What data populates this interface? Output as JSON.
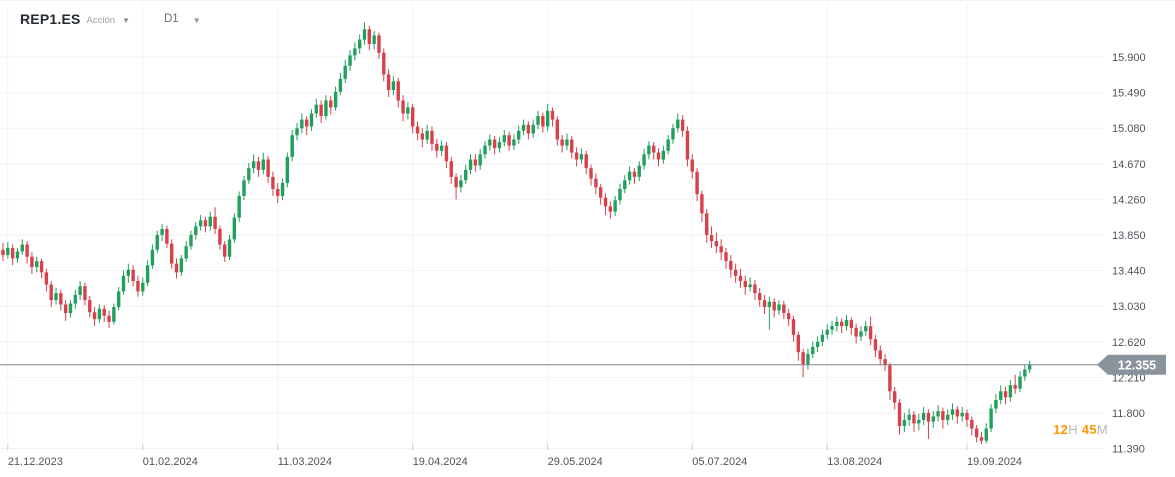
{
  "header": {
    "symbol": "REP1.ES",
    "instrument_type": "Acción",
    "timeframe": "D1"
  },
  "price_scale": {
    "current_price": "12.355",
    "countdown": {
      "hours": "12",
      "hours_unit": "H",
      "minutes": "45",
      "minutes_unit": "M"
    }
  },
  "chart_data": {
    "type": "candlestick",
    "title": "REP1.ES Acción D1",
    "symbol": "REP1.ES",
    "timeframe": "D1",
    "ylim": [
      11.39,
      15.9
    ],
    "grid": true,
    "y_ticks": [
      "15.900",
      "15.490",
      "15.080",
      "14.670",
      "14.260",
      "13.850",
      "13.440",
      "13.030",
      "12.620",
      "12.210",
      "11.800",
      "11.390"
    ],
    "x_ticks": [
      {
        "label": "21.12.2023",
        "index": 1
      },
      {
        "label": "01.02.2024",
        "index": 29
      },
      {
        "label": "11.03.2024",
        "index": 57
      },
      {
        "label": "19.04.2024",
        "index": 85
      },
      {
        "label": "29.05.2024",
        "index": 113
      },
      {
        "label": "05.07.2024",
        "index": 143
      },
      {
        "label": "13.08.2024",
        "index": 171
      },
      {
        "label": "19.09.2024",
        "index": 200
      }
    ],
    "current_price": 12.355,
    "colors": {
      "up": "#21a05d",
      "down": "#d7414b",
      "grid": "#f1f2f4",
      "price_line": "#7d858d",
      "badge": "#8a939b",
      "axis_text": "#4d545b"
    },
    "candles": [
      [
        13.68,
        13.76,
        13.55,
        13.62
      ],
      [
        13.62,
        13.77,
        13.58,
        13.7
      ],
      [
        13.7,
        13.74,
        13.5,
        13.58
      ],
      [
        13.58,
        13.7,
        13.53,
        13.66
      ],
      [
        13.66,
        13.8,
        13.62,
        13.74
      ],
      [
        13.74,
        13.78,
        13.52,
        13.6
      ],
      [
        13.6,
        13.65,
        13.4,
        13.48
      ],
      [
        13.48,
        13.6,
        13.42,
        13.55
      ],
      [
        13.55,
        13.58,
        13.35,
        13.42
      ],
      [
        13.42,
        13.46,
        13.2,
        13.28
      ],
      [
        13.28,
        13.32,
        13.02,
        13.1
      ],
      [
        13.1,
        13.24,
        13.05,
        13.18
      ],
      [
        13.18,
        13.22,
        12.98,
        13.05
      ],
      [
        13.05,
        13.1,
        12.86,
        12.95
      ],
      [
        12.95,
        13.1,
        12.9,
        13.06
      ],
      [
        13.06,
        13.22,
        13.0,
        13.16
      ],
      [
        13.16,
        13.32,
        13.1,
        13.26
      ],
      [
        13.26,
        13.3,
        13.04,
        13.1
      ],
      [
        13.1,
        13.15,
        12.9,
        12.96
      ],
      [
        12.96,
        13.02,
        12.8,
        12.88
      ],
      [
        12.88,
        13.05,
        12.84,
        13.0
      ],
      [
        13.0,
        13.04,
        12.85,
        12.92
      ],
      [
        12.92,
        12.98,
        12.78,
        12.85
      ],
      [
        12.85,
        13.06,
        12.82,
        13.02
      ],
      [
        13.02,
        13.25,
        12.98,
        13.2
      ],
      [
        13.2,
        13.44,
        13.16,
        13.38
      ],
      [
        13.38,
        13.52,
        13.3,
        13.45
      ],
      [
        13.45,
        13.5,
        13.26,
        13.32
      ],
      [
        13.32,
        13.38,
        13.14,
        13.2
      ],
      [
        13.2,
        13.36,
        13.15,
        13.3
      ],
      [
        13.3,
        13.56,
        13.26,
        13.5
      ],
      [
        13.5,
        13.74,
        13.46,
        13.68
      ],
      [
        13.68,
        13.9,
        13.64,
        13.85
      ],
      [
        13.85,
        13.98,
        13.78,
        13.92
      ],
      [
        13.92,
        13.96,
        13.7,
        13.75
      ],
      [
        13.75,
        13.8,
        13.46,
        13.52
      ],
      [
        13.52,
        13.58,
        13.35,
        13.42
      ],
      [
        13.42,
        13.62,
        13.38,
        13.58
      ],
      [
        13.58,
        13.78,
        13.54,
        13.72
      ],
      [
        13.72,
        13.9,
        13.68,
        13.85
      ],
      [
        13.85,
        14.0,
        13.8,
        13.95
      ],
      [
        13.95,
        14.08,
        13.9,
        14.02
      ],
      [
        14.02,
        14.06,
        13.88,
        13.95
      ],
      [
        13.95,
        14.12,
        13.9,
        14.06
      ],
      [
        14.06,
        14.17,
        13.86,
        13.92
      ],
      [
        13.92,
        13.96,
        13.68,
        13.74
      ],
      [
        13.74,
        13.78,
        13.54,
        13.6
      ],
      [
        13.6,
        13.85,
        13.56,
        13.8
      ],
      [
        13.8,
        14.1,
        13.76,
        14.05
      ],
      [
        14.05,
        14.35,
        14.0,
        14.3
      ],
      [
        14.3,
        14.53,
        14.25,
        14.48
      ],
      [
        14.48,
        14.68,
        14.44,
        14.62
      ],
      [
        14.62,
        14.78,
        14.56,
        14.7
      ],
      [
        14.7,
        14.75,
        14.52,
        14.6
      ],
      [
        14.6,
        14.8,
        14.55,
        14.72
      ],
      [
        14.72,
        14.76,
        14.45,
        14.52
      ],
      [
        14.52,
        14.58,
        14.3,
        14.38
      ],
      [
        14.38,
        14.45,
        14.22,
        14.3
      ],
      [
        14.3,
        14.5,
        14.25,
        14.45
      ],
      [
        14.45,
        14.8,
        14.4,
        14.75
      ],
      [
        14.75,
        15.06,
        14.7,
        15.0
      ],
      [
        15.0,
        15.14,
        14.94,
        15.08
      ],
      [
        15.08,
        15.25,
        15.02,
        15.18
      ],
      [
        15.18,
        15.22,
        15.0,
        15.1
      ],
      [
        15.1,
        15.3,
        15.05,
        15.25
      ],
      [
        15.25,
        15.42,
        15.2,
        15.35
      ],
      [
        15.35,
        15.4,
        15.14,
        15.22
      ],
      [
        15.22,
        15.46,
        15.18,
        15.4
      ],
      [
        15.4,
        15.45,
        15.24,
        15.32
      ],
      [
        15.32,
        15.56,
        15.28,
        15.5
      ],
      [
        15.5,
        15.72,
        15.46,
        15.65
      ],
      [
        15.65,
        15.87,
        15.6,
        15.8
      ],
      [
        15.8,
        15.98,
        15.74,
        15.92
      ],
      [
        15.92,
        16.07,
        15.86,
        16.0
      ],
      [
        16.0,
        16.16,
        15.94,
        16.1
      ],
      [
        16.1,
        16.3,
        16.04,
        16.22
      ],
      [
        16.22,
        16.26,
        15.98,
        16.05
      ],
      [
        16.05,
        16.2,
        15.99,
        16.15
      ],
      [
        16.15,
        16.18,
        15.88,
        15.95
      ],
      [
        15.95,
        16.0,
        15.62,
        15.7
      ],
      [
        15.7,
        15.76,
        15.44,
        15.52
      ],
      [
        15.52,
        15.68,
        15.46,
        15.62
      ],
      [
        15.62,
        15.66,
        15.32,
        15.4
      ],
      [
        15.4,
        15.46,
        15.16,
        15.25
      ],
      [
        15.25,
        15.38,
        15.18,
        15.32
      ],
      [
        15.32,
        15.36,
        15.02,
        15.1
      ],
      [
        15.1,
        15.16,
        14.94,
        15.02
      ],
      [
        15.02,
        15.08,
        14.86,
        14.95
      ],
      [
        14.95,
        15.12,
        14.9,
        15.05
      ],
      [
        15.05,
        15.1,
        14.82,
        14.9
      ],
      [
        14.9,
        14.96,
        14.74,
        14.82
      ],
      [
        14.82,
        14.94,
        14.76,
        14.88
      ],
      [
        14.88,
        14.92,
        14.62,
        14.7
      ],
      [
        14.7,
        14.75,
        14.44,
        14.52
      ],
      [
        14.52,
        14.56,
        14.26,
        14.4
      ],
      [
        14.4,
        14.54,
        14.34,
        14.48
      ],
      [
        14.48,
        14.66,
        14.44,
        14.6
      ],
      [
        14.6,
        14.78,
        14.55,
        14.72
      ],
      [
        14.72,
        14.78,
        14.58,
        14.65
      ],
      [
        14.65,
        14.84,
        14.6,
        14.78
      ],
      [
        14.78,
        14.93,
        14.73,
        14.88
      ],
      [
        14.88,
        15.01,
        14.82,
        14.95
      ],
      [
        14.95,
        14.99,
        14.78,
        14.85
      ],
      [
        14.85,
        14.98,
        14.8,
        14.92
      ],
      [
        14.92,
        15.06,
        14.87,
        15.0
      ],
      [
        15.0,
        15.04,
        14.82,
        14.88
      ],
      [
        14.88,
        15.01,
        14.83,
        14.95
      ],
      [
        14.95,
        15.11,
        14.9,
        15.05
      ],
      [
        15.05,
        15.18,
        15.0,
        15.12
      ],
      [
        15.12,
        15.16,
        14.95,
        15.02
      ],
      [
        15.02,
        15.18,
        14.97,
        15.12
      ],
      [
        15.12,
        15.28,
        15.07,
        15.22
      ],
      [
        15.22,
        15.26,
        15.03,
        15.1
      ],
      [
        15.1,
        15.36,
        15.05,
        15.28
      ],
      [
        15.28,
        15.32,
        15.1,
        15.18
      ],
      [
        15.18,
        15.22,
        14.88,
        14.95
      ],
      [
        14.95,
        15.0,
        14.8,
        14.88
      ],
      [
        14.88,
        15.02,
        14.83,
        14.95
      ],
      [
        14.95,
        14.99,
        14.73,
        14.8
      ],
      [
        14.8,
        14.86,
        14.64,
        14.72
      ],
      [
        14.72,
        14.85,
        14.67,
        14.78
      ],
      [
        14.78,
        14.82,
        14.55,
        14.62
      ],
      [
        14.62,
        14.66,
        14.42,
        14.5
      ],
      [
        14.5,
        14.56,
        14.32,
        14.4
      ],
      [
        14.4,
        14.44,
        14.2,
        14.28
      ],
      [
        14.28,
        14.33,
        14.08,
        14.18
      ],
      [
        14.18,
        14.24,
        14.04,
        14.12
      ],
      [
        14.12,
        14.3,
        14.07,
        14.25
      ],
      [
        14.25,
        14.44,
        14.2,
        14.38
      ],
      [
        14.38,
        14.54,
        14.33,
        14.48
      ],
      [
        14.48,
        14.64,
        14.43,
        14.58
      ],
      [
        14.58,
        14.62,
        14.44,
        14.52
      ],
      [
        14.52,
        14.7,
        14.47,
        14.65
      ],
      [
        14.65,
        14.84,
        14.6,
        14.78
      ],
      [
        14.78,
        14.93,
        14.72,
        14.88
      ],
      [
        14.88,
        14.92,
        14.72,
        14.8
      ],
      [
        14.8,
        14.85,
        14.64,
        14.72
      ],
      [
        14.72,
        14.88,
        14.67,
        14.82
      ],
      [
        14.82,
        15.0,
        14.78,
        14.95
      ],
      [
        14.95,
        15.13,
        14.9,
        15.08
      ],
      [
        15.08,
        15.25,
        15.03,
        15.18
      ],
      [
        15.18,
        15.23,
        14.98,
        15.05
      ],
      [
        15.05,
        15.1,
        14.64,
        14.72
      ],
      [
        14.72,
        14.78,
        14.5,
        14.58
      ],
      [
        14.58,
        14.62,
        14.24,
        14.32
      ],
      [
        14.32,
        14.36,
        14.0,
        14.1
      ],
      [
        14.1,
        14.15,
        13.76,
        13.85
      ],
      [
        13.85,
        13.95,
        13.7,
        13.78
      ],
      [
        13.78,
        13.88,
        13.64,
        13.72
      ],
      [
        13.72,
        13.8,
        13.56,
        13.65
      ],
      [
        13.65,
        13.7,
        13.46,
        13.55
      ],
      [
        13.55,
        13.62,
        13.36,
        13.45
      ],
      [
        13.45,
        13.52,
        13.3,
        13.38
      ],
      [
        13.38,
        13.46,
        13.24,
        13.32
      ],
      [
        13.32,
        13.38,
        13.16,
        13.25
      ],
      [
        13.25,
        13.36,
        13.2,
        13.28
      ],
      [
        13.28,
        13.33,
        13.1,
        13.18
      ],
      [
        13.18,
        13.24,
        13.02,
        13.1
      ],
      [
        13.1,
        13.16,
        12.94,
        13.02
      ],
      [
        13.02,
        13.14,
        12.76,
        13.08
      ],
      [
        13.08,
        13.12,
        12.9,
        12.98
      ],
      [
        12.98,
        13.1,
        12.93,
        13.05
      ],
      [
        13.05,
        13.09,
        12.88,
        12.95
      ],
      [
        12.95,
        13.0,
        12.8,
        12.88
      ],
      [
        12.88,
        12.92,
        12.62,
        12.7
      ],
      [
        12.7,
        12.74,
        12.4,
        12.5
      ],
      [
        12.5,
        12.54,
        12.21,
        12.36
      ],
      [
        12.36,
        12.54,
        12.3,
        12.48
      ],
      [
        12.48,
        12.62,
        12.43,
        12.56
      ],
      [
        12.56,
        12.68,
        12.5,
        12.62
      ],
      [
        12.62,
        12.76,
        12.57,
        12.7
      ],
      [
        12.7,
        12.82,
        12.65,
        12.76
      ],
      [
        12.76,
        12.86,
        12.7,
        12.8
      ],
      [
        12.8,
        12.91,
        12.74,
        12.85
      ],
      [
        12.85,
        12.89,
        12.72,
        12.8
      ],
      [
        12.8,
        12.93,
        12.75,
        12.87
      ],
      [
        12.87,
        12.9,
        12.7,
        12.78
      ],
      [
        12.78,
        12.83,
        12.6,
        12.68
      ],
      [
        12.68,
        12.8,
        12.63,
        12.74
      ],
      [
        12.74,
        12.86,
        12.69,
        12.8
      ],
      [
        12.8,
        12.91,
        12.58,
        12.65
      ],
      [
        12.65,
        12.7,
        12.44,
        12.52
      ],
      [
        12.52,
        12.58,
        12.35,
        12.42
      ],
      [
        12.42,
        12.48,
        12.28,
        12.35
      ],
      [
        12.35,
        12.38,
        11.95,
        12.05
      ],
      [
        12.05,
        12.1,
        11.84,
        11.92
      ],
      [
        11.92,
        11.96,
        11.55,
        11.65
      ],
      [
        11.65,
        11.8,
        11.58,
        11.72
      ],
      [
        11.72,
        11.85,
        11.65,
        11.78
      ],
      [
        11.78,
        11.82,
        11.58,
        11.68
      ],
      [
        11.68,
        11.79,
        11.6,
        11.72
      ],
      [
        11.72,
        11.87,
        11.66,
        11.8
      ],
      [
        11.8,
        11.84,
        11.5,
        11.7
      ],
      [
        11.7,
        11.82,
        11.63,
        11.76
      ],
      [
        11.76,
        11.89,
        11.7,
        11.82
      ],
      [
        11.82,
        11.86,
        11.62,
        11.72
      ],
      [
        11.72,
        11.84,
        11.66,
        11.78
      ],
      [
        11.78,
        11.91,
        11.72,
        11.84
      ],
      [
        11.84,
        11.88,
        11.68,
        11.76
      ],
      [
        11.76,
        11.87,
        11.7,
        11.8
      ],
      [
        11.8,
        11.84,
        11.64,
        11.72
      ],
      [
        11.72,
        11.76,
        11.54,
        11.62
      ],
      [
        11.62,
        11.66,
        11.46,
        11.52
      ],
      [
        11.52,
        11.58,
        11.44,
        11.48
      ],
      [
        11.48,
        11.68,
        11.45,
        11.62
      ],
      [
        11.62,
        11.9,
        11.58,
        11.85
      ],
      [
        11.85,
        12.02,
        11.8,
        11.95
      ],
      [
        11.95,
        12.12,
        11.9,
        12.05
      ],
      [
        12.05,
        12.1,
        11.9,
        11.98
      ],
      [
        11.98,
        12.18,
        11.93,
        12.12
      ],
      [
        12.12,
        12.24,
        12.02,
        12.08
      ],
      [
        12.08,
        12.28,
        12.04,
        12.22
      ],
      [
        12.22,
        12.36,
        12.17,
        12.3
      ],
      [
        12.3,
        12.4,
        12.26,
        12.355
      ]
    ]
  }
}
